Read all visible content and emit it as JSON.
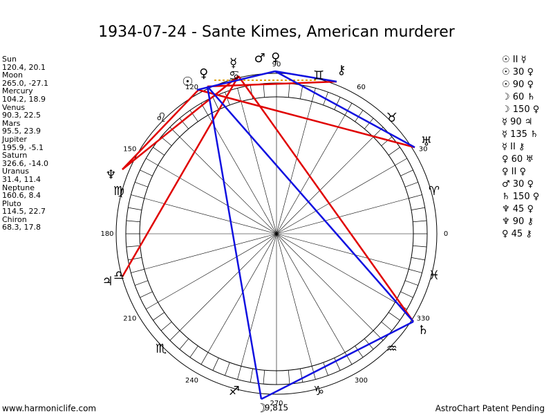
{
  "title": "1934-07-24 - Sante Kimes, American murderer",
  "planets": [
    {
      "name": "Sun",
      "glyph": "☉",
      "coords": "120.4, 20.1"
    },
    {
      "name": "Moon",
      "glyph": "☽",
      "coords": "265.0, -27.1"
    },
    {
      "name": "Mercury",
      "glyph": "☿",
      "coords": "104.2, 18.9"
    },
    {
      "name": "Venus",
      "glyph": "♀",
      "coords": "90.3, 22.5"
    },
    {
      "name": "Mars",
      "glyph": "♂",
      "coords": "95.5, 23.9"
    },
    {
      "name": "Jupiter",
      "glyph": "♃",
      "coords": "195.9, -5.1"
    },
    {
      "name": "Saturn",
      "glyph": "♄",
      "coords": "326.6, -14.0"
    },
    {
      "name": "Uranus",
      "glyph": "♅",
      "coords": "31.4, 11.4"
    },
    {
      "name": "Neptune",
      "glyph": "♆",
      "coords": "160.6, 8.4"
    },
    {
      "name": "Pluto",
      "glyph": "♀",
      "coords": "114.5, 22.7"
    },
    {
      "name": "Chiron",
      "glyph": "⚷",
      "coords": "68.3, 17.8"
    }
  ],
  "aspects": [
    "☉ II ☿",
    "☉ 30 ♀",
    "☉ 90 ♀",
    "☽ 60 ♄",
    "☽ 150 ♀",
    "☿ 90 ♃",
    "☿ 135 ♄",
    "☿ II ⚷",
    "♀ 60 ♅",
    "♀ II ♀",
    "♂ 30 ♀",
    "♄ 150 ♀",
    "♆ 45 ♀",
    "♆ 90 ⚷",
    "♀ 45 ⚷"
  ],
  "signs": [
    "♈",
    "♉",
    "♊",
    "♋",
    "♌",
    "♍",
    "♎",
    "♏",
    "♐",
    "♑",
    "♒",
    "♓"
  ],
  "degree_labels": [
    "0",
    "30",
    "60",
    "90",
    "120",
    "150",
    "180",
    "210",
    "240",
    "270",
    "300",
    "330"
  ],
  "note": "9,815",
  "footer_left": "www.harmoniclife.com",
  "footer_right": "AstroChart Patent Pending"
}
